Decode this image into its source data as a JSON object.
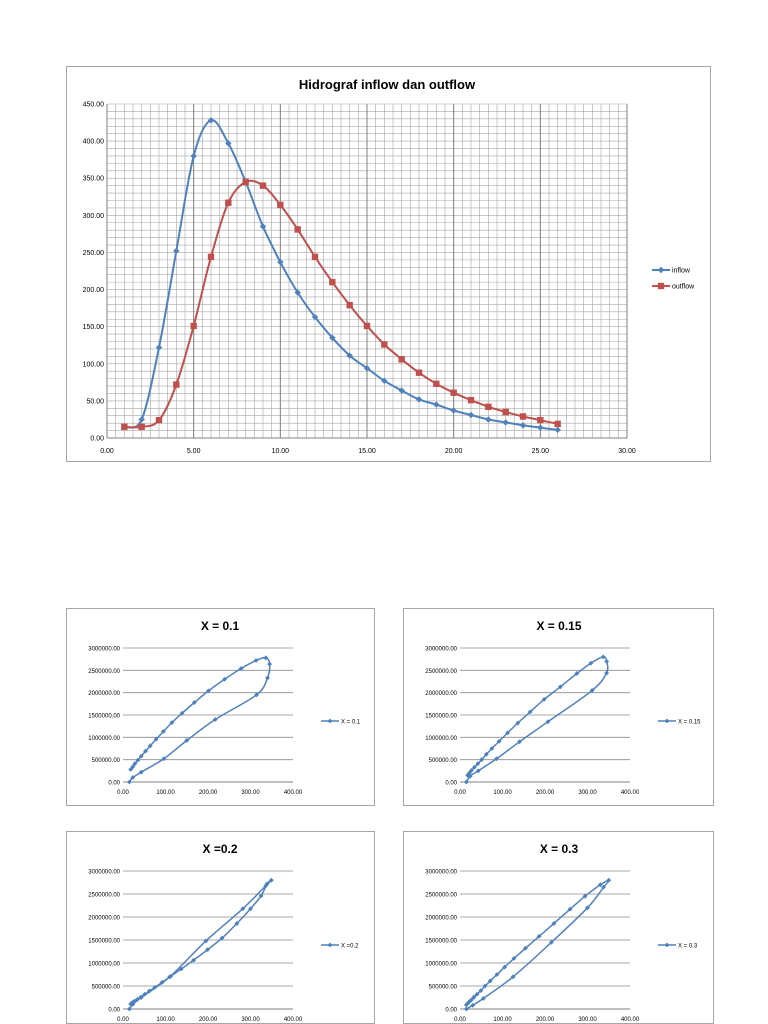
{
  "chart_data": [
    {
      "type": "line",
      "title": "Hidrograf inflow dan outflow",
      "xlim": [
        0,
        30
      ],
      "ylim": [
        0,
        450
      ],
      "x_ticks": [
        "0.00",
        "5.00",
        "10.00",
        "15.00",
        "20.00",
        "25.00",
        "30.00"
      ],
      "y_ticks": [
        "0.00",
        "50.00",
        "100.00",
        "150.00",
        "200.00",
        "250.00",
        "300.00",
        "350.00",
        "400.00",
        "450.00"
      ],
      "grid": true,
      "legend_position": "right",
      "series": [
        {
          "name": "inflow",
          "color": "#4f81bd",
          "marker": "diamond",
          "x": [
            1,
            2,
            3,
            4,
            5,
            6,
            7,
            8,
            9,
            10,
            11,
            12,
            13,
            14,
            15,
            16,
            17,
            18,
            19,
            20,
            21,
            22,
            23,
            24,
            25,
            26
          ],
          "y": [
            15,
            25,
            122,
            252,
            380,
            428,
            397,
            345,
            285,
            237,
            196,
            163,
            135,
            111,
            94,
            77,
            64,
            52,
            45,
            37,
            31,
            25,
            21,
            17,
            14,
            11
          ]
        },
        {
          "name": "outflow",
          "color": "#c0504d",
          "marker": "square",
          "x": [
            1,
            2,
            3,
            4,
            5,
            6,
            7,
            8,
            9,
            10,
            11,
            12,
            13,
            14,
            15,
            16,
            17,
            18,
            19,
            20,
            21,
            22,
            23,
            24,
            25,
            26
          ],
          "y": [
            15,
            15,
            24,
            72,
            151,
            244,
            317,
            345,
            340,
            314,
            281,
            244,
            210,
            179,
            151,
            126,
            106,
            88,
            73,
            61,
            51,
            42,
            35,
            29,
            24,
            19
          ]
        }
      ]
    },
    {
      "type": "line",
      "title": "X = 0.1",
      "xlim": [
        0,
        400
      ],
      "ylim": [
        0,
        3000000
      ],
      "x_ticks": [
        "0.00",
        "100.00",
        "200.00",
        "300.00",
        "400.00"
      ],
      "y_ticks": [
        "0.00",
        "500000.00",
        "1000000.00",
        "1500000.00",
        "2000000.00",
        "2500000.00",
        "3000000.00"
      ],
      "legend_position": "right",
      "series": [
        {
          "name": "X = 0.1",
          "color": "#4f81bd",
          "x": [
            15,
            23,
            43,
            96,
            150,
            217,
            314,
            340,
            345,
            336,
            313,
            278,
            239,
            201,
            168,
            139,
            115,
            95,
            78,
            64,
            53,
            43,
            35,
            28,
            23,
            18
          ],
          "y": [
            0,
            100000,
            220000,
            520000,
            930000,
            1400000,
            1950000,
            2330000,
            2640000,
            2780000,
            2720000,
            2540000,
            2300000,
            2040000,
            1780000,
            1540000,
            1330000,
            1130000,
            960000,
            810000,
            690000,
            580000,
            490000,
            410000,
            340000,
            280000
          ]
        }
      ]
    },
    {
      "type": "line",
      "title": "X = 0.15",
      "xlim": [
        0,
        400
      ],
      "ylim": [
        0,
        3000000
      ],
      "x_ticks": [
        "0.00",
        "100.00",
        "200.00",
        "300.00",
        "400.00"
      ],
      "y_ticks": [
        "0.00",
        "500000.00",
        "1000000.00",
        "1500000.00",
        "2000000.00",
        "2500000.00",
        "3000000.00"
      ],
      "legend_position": "right",
      "series": [
        {
          "name": "X = 0.15",
          "color": "#4f81bd",
          "x": [
            15,
            24,
            43,
            86,
            140,
            207,
            311,
            345,
            345,
            337,
            308,
            275,
            236,
            198,
            165,
            136,
            112,
            92,
            75,
            62,
            51,
            42,
            34,
            27,
            22,
            18
          ],
          "y": [
            0,
            130000,
            250000,
            520000,
            900000,
            1350000,
            2050000,
            2440000,
            2700000,
            2800000,
            2660000,
            2430000,
            2130000,
            1850000,
            1570000,
            1320000,
            1100000,
            910000,
            750000,
            620000,
            500000,
            410000,
            330000,
            260000,
            200000,
            150000
          ]
        }
      ]
    },
    {
      "type": "line",
      "title": "X =0.2",
      "xlim": [
        0,
        400
      ],
      "ylim": [
        0,
        3000000
      ],
      "x_ticks": [
        "0.00",
        "100.00",
        "200.00",
        "300.00",
        "400.00"
      ],
      "y_ticks": [
        "0.00",
        "500000.00",
        "1000000.00",
        "1500000.00",
        "2000000.00",
        "2500000.00",
        "3000000.00"
      ],
      "legend_position": "right",
      "series": [
        {
          "name": "X =0.2",
          "color": "#4f81bd",
          "x": [
            15,
            23,
            43,
            110,
            195,
            282,
            336,
            349,
            339,
            325,
            300,
            268,
            233,
            199,
            166,
            137,
            112,
            92,
            75,
            62,
            51,
            42,
            34,
            27,
            22,
            18
          ],
          "y": [
            0,
            100000,
            250000,
            700000,
            1480000,
            2180000,
            2680000,
            2800000,
            2720000,
            2460000,
            2180000,
            1860000,
            1540000,
            1290000,
            1060000,
            870000,
            710000,
            580000,
            470000,
            390000,
            320000,
            260000,
            210000,
            170000,
            140000,
            110000
          ]
        }
      ]
    },
    {
      "type": "line",
      "title": "X = 0.3",
      "xlim": [
        0,
        400
      ],
      "ylim": [
        0,
        3000000
      ],
      "x_ticks": [
        "0.00",
        "100.00",
        "200.00",
        "300.00",
        "400.00"
      ],
      "y_ticks": [
        "0.00",
        "500000.00",
        "1000000.00",
        "1500000.00",
        "2000000.00",
        "2500000.00",
        "3000000.00"
      ],
      "legend_position": "right",
      "series": [
        {
          "name": "X = 0.3",
          "color": "#4f81bd",
          "x": [
            15,
            30,
            55,
            125,
            215,
            300,
            338,
            350,
            330,
            294,
            259,
            221,
            186,
            154,
            127,
            105,
            87,
            71,
            59,
            49,
            40,
            33,
            27,
            22,
            18,
            15
          ],
          "y": [
            0,
            80000,
            230000,
            700000,
            1450000,
            2200000,
            2650000,
            2800000,
            2700000,
            2450000,
            2170000,
            1860000,
            1580000,
            1320000,
            1100000,
            910000,
            750000,
            610000,
            500000,
            400000,
            320000,
            260000,
            200000,
            160000,
            120000,
            90000
          ]
        }
      ]
    }
  ]
}
